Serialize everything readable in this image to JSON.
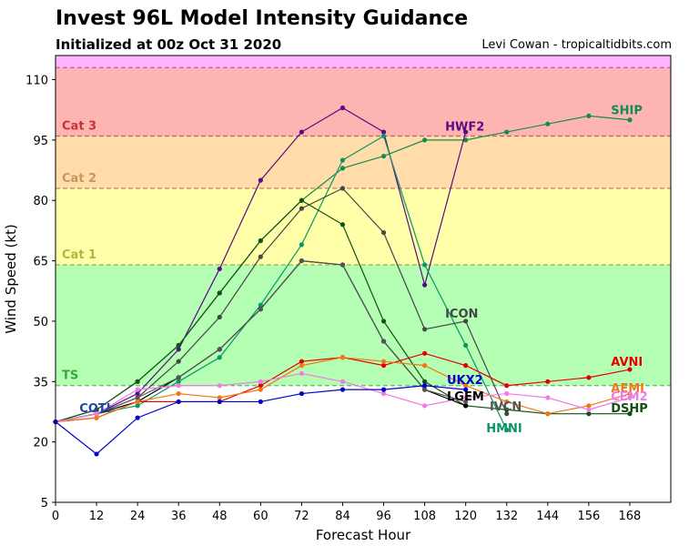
{
  "chart_data": {
    "type": "line",
    "title": "Invest 96L Model Intensity Guidance",
    "subtitle": "Initialized at 00z Oct 31 2020",
    "credit": "Levi Cowan - tropicaltidbits.com",
    "xlabel": "Forecast Hour",
    "ylabel": "Wind Speed (kt)",
    "xlim": [
      0,
      180
    ],
    "ylim": [
      5,
      116
    ],
    "xticks": [
      0,
      12,
      24,
      36,
      48,
      60,
      72,
      84,
      96,
      108,
      120,
      132,
      144,
      156,
      168
    ],
    "yticks": [
      5,
      20,
      35,
      50,
      65,
      80,
      95,
      110
    ],
    "bands": [
      {
        "label": "",
        "from": 5,
        "to": 34,
        "color": "#ffffff"
      },
      {
        "label": "TS",
        "from": 34,
        "to": 64,
        "color": "#b4ffb4",
        "text_color": "#3aa63a",
        "line_color": "#64b464"
      },
      {
        "label": "Cat 1",
        "from": 64,
        "to": 83,
        "color": "#ffffaa",
        "text_color": "#b4b43c",
        "line_color": "#aaaa55"
      },
      {
        "label": "Cat 2",
        "from": 83,
        "to": 96,
        "color": "#ffdcaa",
        "text_color": "#c8965a",
        "line_color": "#b48c64"
      },
      {
        "label": "Cat 3",
        "from": 96,
        "to": 113,
        "color": "#ffb4b4",
        "text_color": "#c83232",
        "line_color": "#b46464"
      },
      {
        "label": "",
        "from": 113,
        "to": 116,
        "color": "#ffb4ff",
        "line_color": "#b464b4"
      }
    ],
    "series": [
      {
        "name": "SHIP",
        "color": "#148c50",
        "x": [
          0,
          12,
          24,
          36,
          48,
          60,
          72,
          84,
          96,
          108,
          120,
          132,
          144,
          156,
          168
        ],
        "values": [
          25,
          28,
          35,
          44,
          57,
          70,
          80,
          88,
          91,
          95,
          95,
          97,
          99,
          101,
          100
        ]
      },
      {
        "name": "HWF2",
        "color": "#5a0a82",
        "x": [
          0,
          12,
          24,
          36,
          48,
          60,
          72,
          84,
          96,
          108,
          120
        ],
        "values": [
          25,
          27,
          32,
          43,
          63,
          85,
          97,
          103,
          97,
          59,
          97
        ]
      },
      {
        "name": "HMNI",
        "color": "#0a9664",
        "x": [
          0,
          12,
          24,
          36,
          48,
          60,
          72,
          84,
          96,
          108,
          120,
          132
        ],
        "values": [
          25,
          27,
          29,
          35,
          41,
          54,
          69,
          90,
          96,
          64,
          44,
          23
        ]
      },
      {
        "name": "ICON",
        "color": "#464646",
        "x": [
          0,
          12,
          24,
          36,
          48,
          60,
          72,
          84,
          96,
          108,
          120,
          132
        ],
        "values": [
          25,
          27,
          31,
          40,
          51,
          66,
          78,
          83,
          72,
          48,
          50,
          27
        ]
      },
      {
        "name": "DSHP",
        "color": "#145014",
        "x": [
          0,
          12,
          24,
          36,
          48,
          60,
          72,
          84,
          96,
          108,
          120,
          132,
          144,
          156,
          168
        ],
        "values": [
          25,
          28,
          35,
          44,
          57,
          70,
          80,
          74,
          50,
          35,
          29,
          28,
          27,
          27,
          27
        ]
      },
      {
        "name": "LGEM",
        "color": "#000000",
        "x": [
          0,
          12,
          24,
          36,
          48,
          60,
          72,
          84,
          96,
          108,
          120
        ],
        "values": [
          25,
          27,
          30,
          36,
          43,
          53,
          65,
          64,
          45,
          33,
          29
        ]
      },
      {
        "name": "IVCN",
        "color": "#555555",
        "x": [
          0,
          12,
          24,
          36,
          48,
          60,
          72,
          84,
          96,
          108,
          120
        ],
        "values": [
          25,
          27,
          31,
          36,
          43,
          53,
          65,
          64,
          45,
          33,
          30
        ]
      },
      {
        "name": "AVNI",
        "color": "#e60000",
        "x": [
          0,
          12,
          24,
          36,
          48,
          60,
          72,
          84,
          96,
          108,
          120,
          132,
          144,
          156,
          168
        ],
        "values": [
          25,
          26,
          30,
          30,
          30,
          34,
          40,
          41,
          39,
          42,
          39,
          34,
          35,
          36,
          38
        ]
      },
      {
        "name": "AEMI",
        "color": "#f07814",
        "x": [
          0,
          12,
          24,
          36,
          48,
          60,
          72,
          84,
          96,
          108,
          120,
          132,
          144,
          156,
          168
        ],
        "values": [
          25,
          26,
          30,
          32,
          31,
          33,
          39,
          41,
          40,
          39,
          34,
          30,
          27,
          29,
          32
        ]
      },
      {
        "name": "CEM2",
        "color": "#f07ae6",
        "x": [
          0,
          12,
          24,
          36,
          48,
          60,
          72,
          84,
          96,
          108,
          120,
          132,
          144,
          156,
          168
        ],
        "values": [
          25,
          27,
          33,
          34,
          34,
          35,
          37,
          35,
          32,
          29,
          31,
          32,
          31,
          28,
          31
        ]
      },
      {
        "name": "UKX2",
        "color": "#0000cc",
        "x": [
          0,
          12,
          24,
          36,
          48,
          60,
          72,
          84,
          96,
          108,
          120
        ],
        "values": [
          25,
          17,
          26,
          30,
          30,
          30,
          32,
          33,
          33,
          34,
          33
        ]
      },
      {
        "name": "COTI",
        "color": "#1e46b4",
        "x": [],
        "values": []
      }
    ],
    "labels": [
      {
        "text": "SHIP",
        "x": 162.5,
        "y": 102.5,
        "anchor": "start",
        "color": "#148c50"
      },
      {
        "text": "HWF2",
        "x": 114,
        "y": 98.5,
        "anchor": "start",
        "color": "#5a0a82"
      },
      {
        "text": "ICON",
        "x": 114,
        "y": 52,
        "anchor": "start",
        "color": "#464646"
      },
      {
        "text": "AVNI",
        "x": 162.5,
        "y": 40,
        "anchor": "start",
        "color": "#e60000"
      },
      {
        "text": "AEMI",
        "x": 162.5,
        "y": 33.5,
        "anchor": "start",
        "color": "#f07814"
      },
      {
        "text": "CEM2",
        "x": 162.5,
        "y": 31.5,
        "anchor": "start",
        "color": "#f07ae6"
      },
      {
        "text": "DSHP",
        "x": 162.5,
        "y": 28.5,
        "anchor": "start",
        "color": "#145014"
      },
      {
        "text": "UKX2",
        "x": 114.5,
        "y": 35.5,
        "anchor": "start",
        "color": "#0000cc"
      },
      {
        "text": "LGEM",
        "x": 114.5,
        "y": 31.5,
        "anchor": "start",
        "color": "#000000"
      },
      {
        "text": "IVCN",
        "x": 127,
        "y": 29,
        "anchor": "start",
        "color": "#555555"
      },
      {
        "text": "HMNI",
        "x": 126,
        "y": 23.5,
        "anchor": "start",
        "color": "#0a9664"
      },
      {
        "text": "COTI",
        "x": 7,
        "y": 28.5,
        "anchor": "start",
        "color": "#1e46b4"
      }
    ]
  }
}
